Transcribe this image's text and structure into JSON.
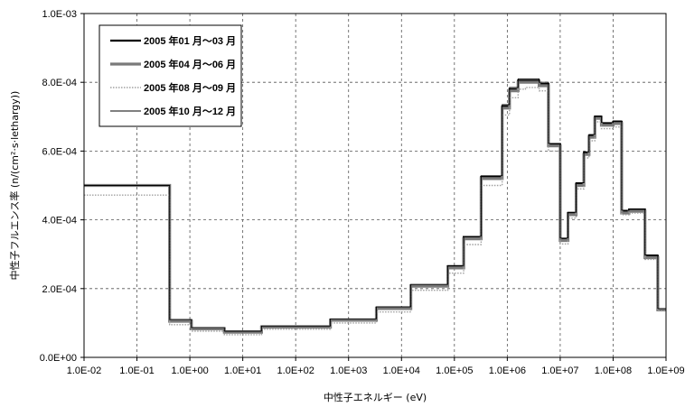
{
  "chart_data": {
    "type": "line",
    "step": true,
    "ylabel": "中性子フルエンス率 (n/(cm²·s·lethargy))",
    "xlabel": "中性子エネルギー (eV)",
    "xscale": "log",
    "xlim": [
      0.01,
      1000000000
    ],
    "ylim": [
      0,
      0.001
    ],
    "grid": true,
    "legend_position": "top-left",
    "x_ticks": [
      "1.0E-02",
      "1.0E-01",
      "1.0E+00",
      "1.0E+01",
      "1.0E+02",
      "1.0E+03",
      "1.0E+04",
      "1.0E+05",
      "1.0E+06",
      "1.0E+07",
      "1.0E+08",
      "1.0E+09"
    ],
    "y_ticks": [
      "0.0E+00",
      "2.0E-04",
      "4.0E-04",
      "6.0E-04",
      "8.0E-04",
      "1.0E-03"
    ],
    "bin_edges": [
      0.01,
      0.414,
      1.07,
      4.5,
      22.6,
      454,
      3350,
      15000,
      75000,
      150000,
      320000,
      800000,
      1100000,
      1600000,
      2200000,
      4000000,
      6000000,
      10000000,
      14000000,
      20000000,
      28000000,
      35000000,
      45000000,
      60000000,
      100000000,
      145000000,
      200000000,
      400000000,
      700000000,
      1000000000
    ],
    "series": [
      {
        "name": "2005 年01 月～03 月",
        "color": "#000000",
        "width": 2.2,
        "dash": "",
        "values": [
          0.0005,
          0.000108,
          8.5e-05,
          7.5e-05,
          9e-05,
          0.00011,
          0.000145,
          0.00021,
          0.000265,
          0.00035,
          0.000525,
          0.00073,
          0.00078,
          0.000805,
          0.000805,
          0.000795,
          0.00062,
          0.000345,
          0.00042,
          0.000505,
          0.000595,
          0.000645,
          0.0007,
          0.00068,
          0.000685,
          0.000425,
          0.00043,
          0.000295,
          0.00014
        ]
      },
      {
        "name": "2005 年04 月～06 月",
        "color": "#7a7a7a",
        "width": 3.2,
        "dash": "",
        "values": [
          0.0005,
          0.000105,
          8.3e-05,
          7.3e-05,
          8.8e-05,
          0.000108,
          0.000142,
          0.000207,
          0.00026,
          0.000345,
          0.00052,
          0.000725,
          0.000775,
          0.0008,
          0.0008,
          0.00079,
          0.000615,
          0.00034,
          0.000415,
          0.0005,
          0.00059,
          0.00064,
          0.000695,
          0.000675,
          0.00068,
          0.00042,
          0.000425,
          0.00029,
          0.000138
        ]
      },
      {
        "name": "2005 年08 月～09 月",
        "color": "#a0a0a0",
        "width": 1.4,
        "dash": "1.5,1.5",
        "values": [
          0.000472,
          9.5e-05,
          7.6e-05,
          6.6e-05,
          8.2e-05,
          0.0001,
          0.000132,
          0.000195,
          0.000245,
          0.000328,
          0.0005,
          0.000705,
          0.000755,
          0.00078,
          0.000785,
          0.000775,
          0.0006,
          0.00033,
          0.000405,
          0.00049,
          0.00058,
          0.00063,
          0.000685,
          0.000665,
          0.00067,
          0.000415,
          0.00042,
          0.000285,
          0.000135
        ]
      },
      {
        "name": "2005 年10 月～12 月",
        "color": "#000000",
        "width": 0.9,
        "dash": "",
        "values": [
          0.0005,
          0.00011,
          8.7e-05,
          7.6e-05,
          9.1e-05,
          0.000112,
          0.000147,
          0.000212,
          0.000267,
          0.000352,
          0.000528,
          0.000735,
          0.000785,
          0.00081,
          0.00081,
          0.0008,
          0.000622,
          0.000347,
          0.000422,
          0.000508,
          0.000598,
          0.000648,
          0.000702,
          0.000683,
          0.000688,
          0.000428,
          0.000432,
          0.000298,
          0.000142
        ]
      }
    ]
  }
}
